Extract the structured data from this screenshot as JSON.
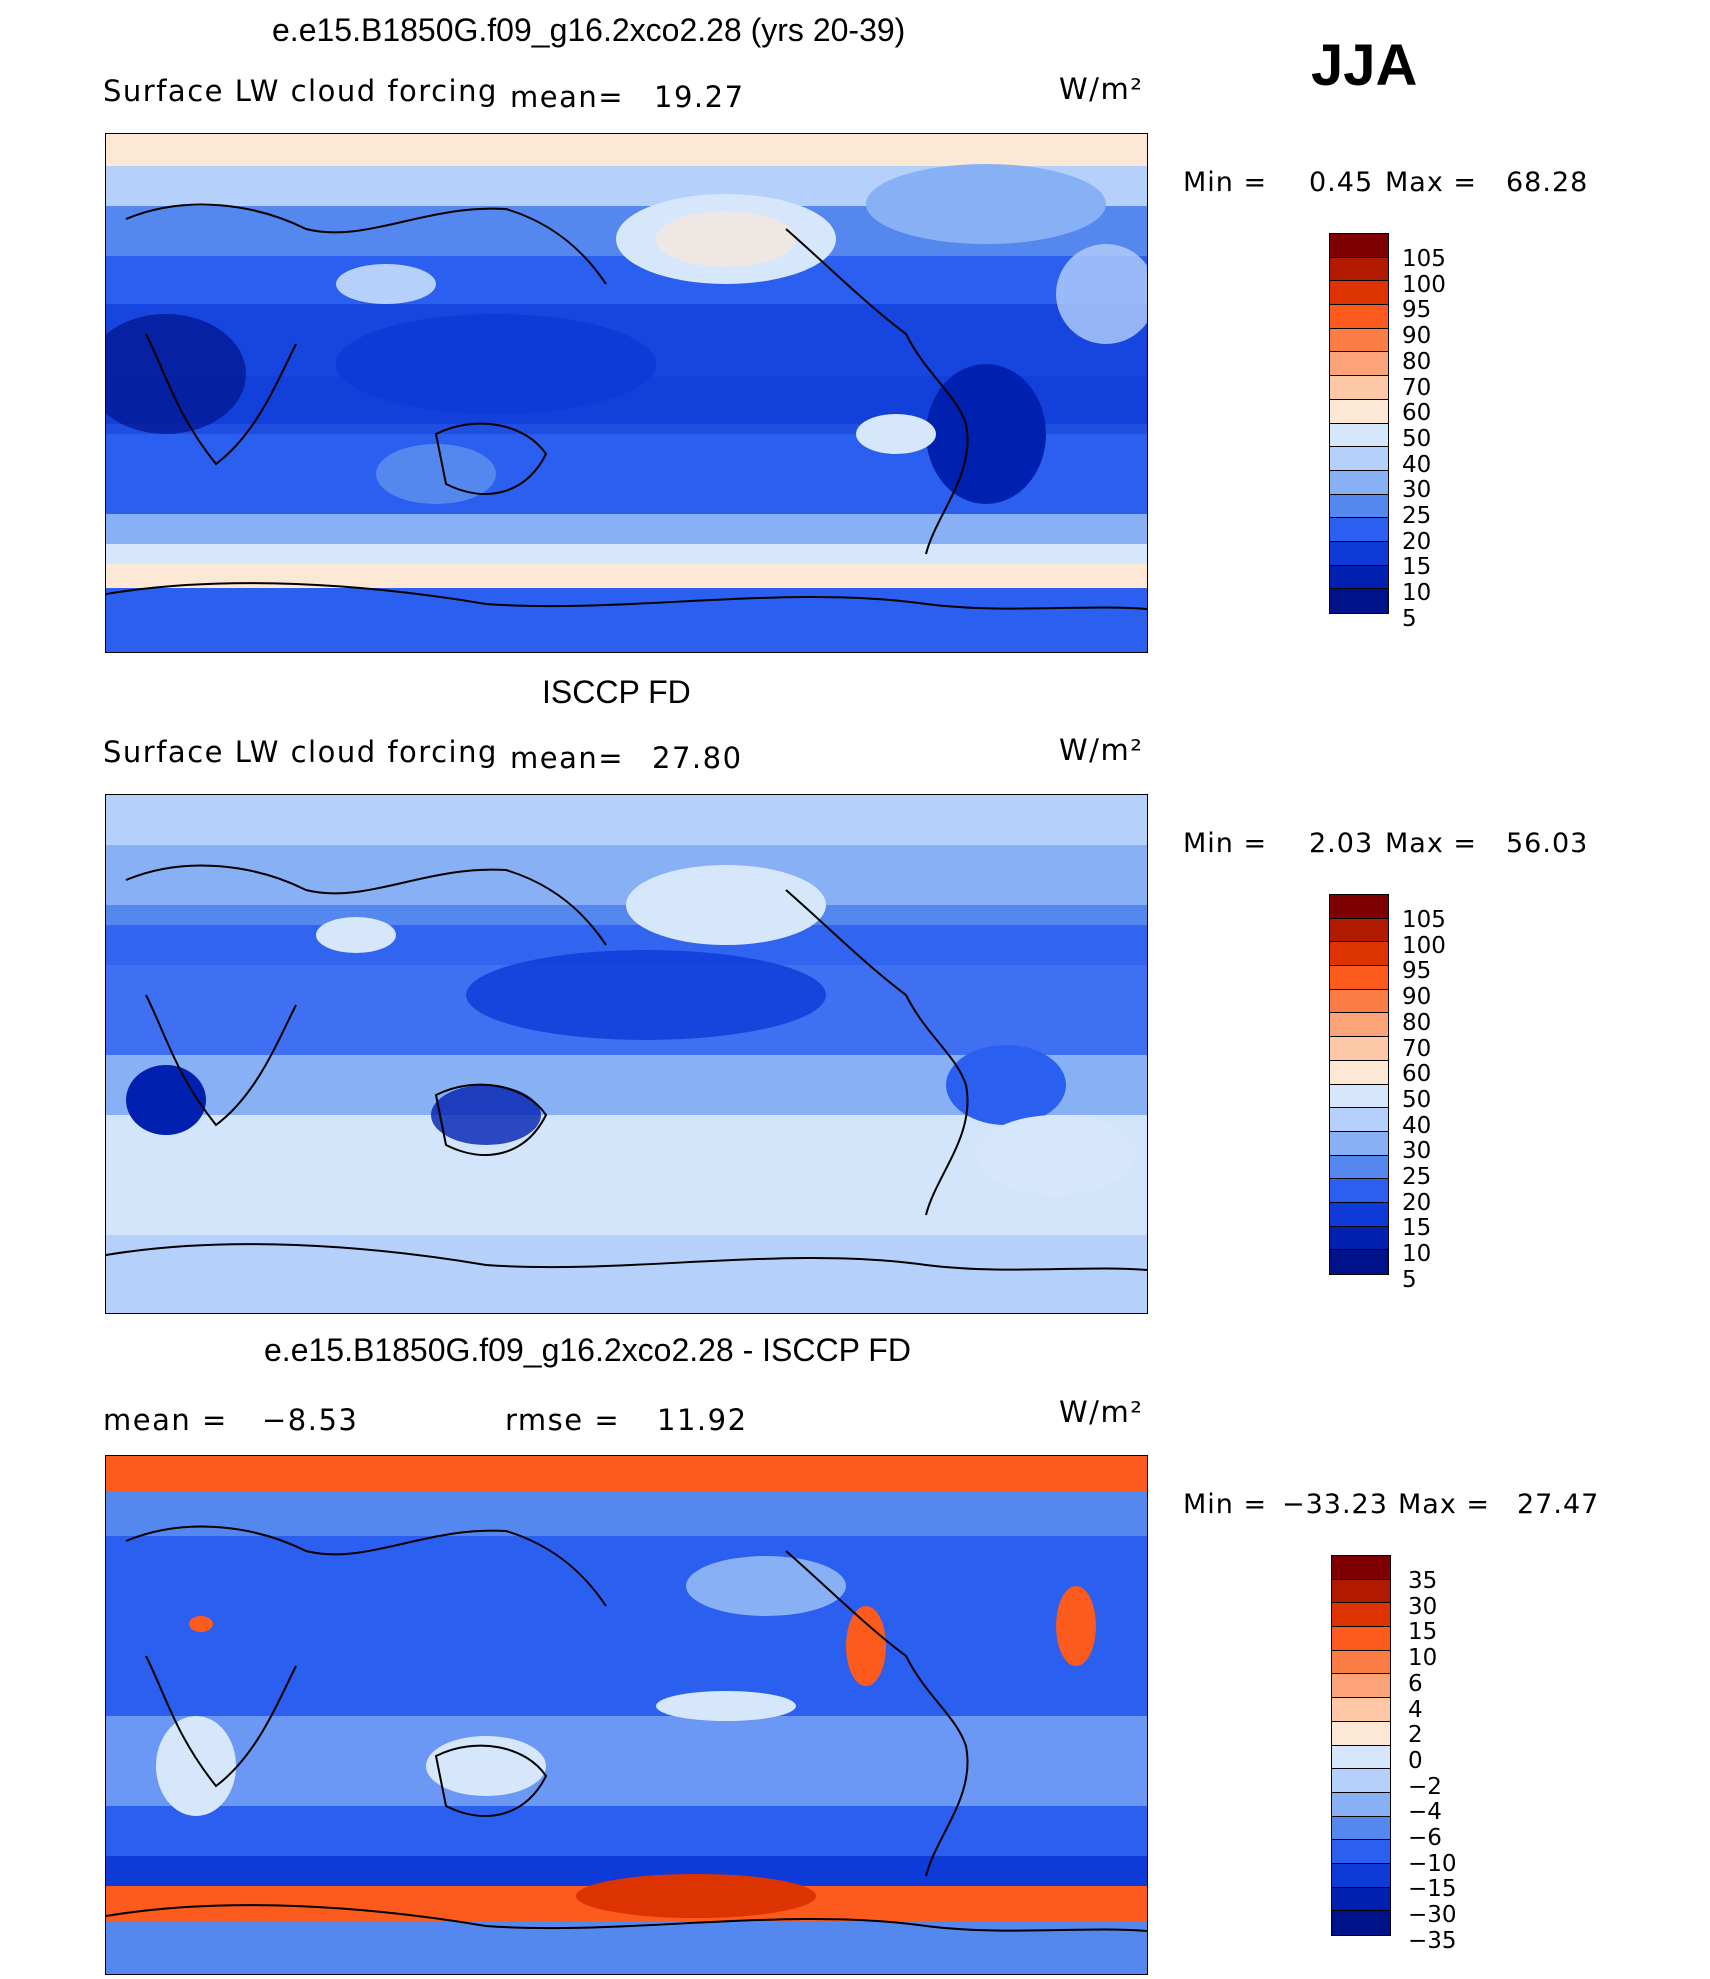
{
  "season": "JJA",
  "units": "W/m²",
  "panels": [
    {
      "id": "model",
      "title": "e.e15.B1850G.f09_g16.2xco2.28 (yrs 20-39)",
      "variable": "Surface LW cloud forcing",
      "mean_label": "mean=",
      "mean": "19.27",
      "min_label": "Min =",
      "min": "0.45",
      "max_label": "Max =",
      "max": "68.28",
      "levels": [
        "105",
        "100",
        "95",
        "90",
        "80",
        "70",
        "60",
        "50",
        "40",
        "30",
        "25",
        "20",
        "15",
        "10",
        "5"
      ]
    },
    {
      "id": "obs",
      "title": "ISCCP FD",
      "variable": "Surface LW cloud forcing",
      "mean_label": "mean=",
      "mean": "27.80",
      "min_label": "Min =",
      "min": "2.03",
      "max_label": "Max =",
      "max": "56.03",
      "levels": [
        "105",
        "100",
        "95",
        "90",
        "80",
        "70",
        "60",
        "50",
        "40",
        "30",
        "25",
        "20",
        "15",
        "10",
        "5"
      ]
    },
    {
      "id": "diff",
      "title": "e.e15.B1850G.f09_g16.2xco2.28 - ISCCP FD",
      "mean_label": "mean =",
      "mean": "−8.53",
      "rmse_label": "rmse =",
      "rmse": "11.92",
      "min_label": "Min =",
      "min": "−33.23",
      "max_label": "Max =",
      "max": "27.47",
      "levels": [
        "35",
        "30",
        "15",
        "10",
        "6",
        "4",
        "2",
        "0",
        "−2",
        "−4",
        "−6",
        "−10",
        "−15",
        "−30",
        "−35"
      ]
    }
  ],
  "colors": {
    "scale": [
      "#7f0000",
      "#b21a00",
      "#dd3300",
      "#fd5a1d",
      "#fc7c45",
      "#fca37a",
      "#fdc8a6",
      "#fde8d6",
      "#d6e7fb",
      "#b5d0fa",
      "#88b0f5",
      "#5588ee",
      "#2b5ff0",
      "#0e3ad8",
      "#0020b0",
      "#00128a"
    ]
  }
}
